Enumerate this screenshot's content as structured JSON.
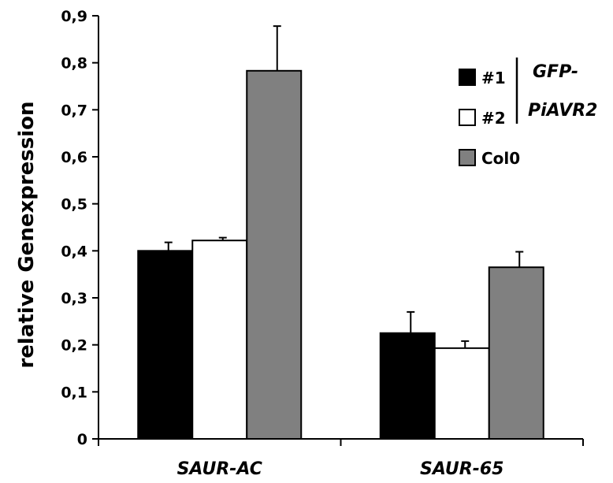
{
  "chart_data": {
    "type": "bar",
    "ylabel": "relative Genexpression",
    "xlabel": "",
    "ylim": [
      0,
      0.9
    ],
    "yticks": [
      0,
      0.1,
      0.2,
      0.3,
      0.4,
      0.5,
      0.6,
      0.7,
      0.8,
      0.9
    ],
    "ytick_labels": [
      "0",
      "0,1",
      "0,2",
      "0,3",
      "0,4",
      "0,5",
      "0,6",
      "0,7",
      "0,8",
      "0,9"
    ],
    "categories": [
      "SAUR-AC",
      "SAUR-65"
    ],
    "series": [
      {
        "name": "#1",
        "color": "#000000",
        "values": [
          0.4,
          0.225
        ],
        "errors": [
          0.018,
          0.045
        ]
      },
      {
        "name": "#2",
        "color": "#ffffff",
        "values": [
          0.422,
          0.193
        ],
        "errors": [
          0.006,
          0.015
        ]
      },
      {
        "name": "Col0",
        "color": "#808080",
        "values": [
          0.783,
          0.365
        ],
        "errors": [
          0.095,
          0.033
        ]
      }
    ],
    "legend": {
      "placement": "top-right",
      "group_label_lines": [
        "GFP-",
        "PiAVR2"
      ]
    },
    "grid": false
  }
}
